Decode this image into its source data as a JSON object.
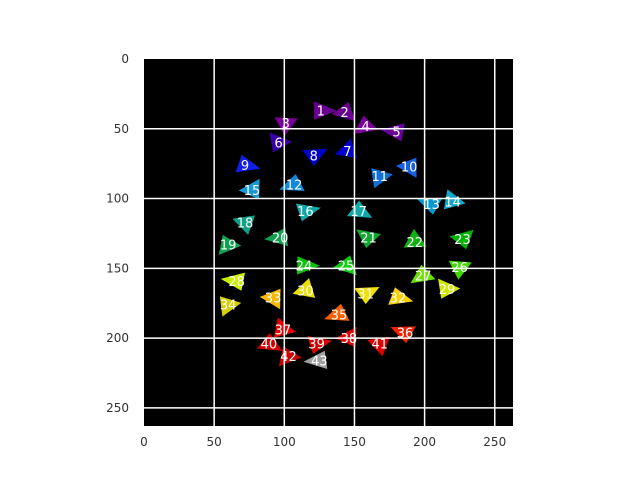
{
  "colors": {
    "background": "#000000",
    "grid": "#ffffff",
    "tick_text": "#333333",
    "label_text": "#ffffff"
  },
  "chart_data": {
    "type": "heatmap",
    "xlim": [
      0,
      263
    ],
    "ylim": [
      0,
      263
    ],
    "y_inverted": true,
    "grid": true,
    "x_ticks": [
      0,
      50,
      100,
      150,
      200,
      250
    ],
    "y_ticks": [
      0,
      50,
      100,
      150,
      200,
      250
    ],
    "segments": [
      {
        "label": "1",
        "x": 126,
        "y": 37,
        "color": "#6b0090"
      },
      {
        "label": "2",
        "x": 143,
        "y": 38,
        "color": "#6b0090"
      },
      {
        "label": "3",
        "x": 101,
        "y": 46,
        "color": "#7a009a"
      },
      {
        "label": "4",
        "x": 158,
        "y": 48,
        "color": "#7a009a"
      },
      {
        "label": "5",
        "x": 180,
        "y": 52,
        "color": "#6a009a"
      },
      {
        "label": "6",
        "x": 96,
        "y": 60,
        "color": "#3a00a8"
      },
      {
        "label": "7",
        "x": 145,
        "y": 66,
        "color": "#0000c8"
      },
      {
        "label": "8",
        "x": 121,
        "y": 69,
        "color": "#0000c8"
      },
      {
        "label": "9",
        "x": 72,
        "y": 76,
        "color": "#1020e8"
      },
      {
        "label": "10",
        "x": 189,
        "y": 77,
        "color": "#1860e0"
      },
      {
        "label": "11",
        "x": 168,
        "y": 84,
        "color": "#1070d8"
      },
      {
        "label": "12",
        "x": 107,
        "y": 90,
        "color": "#1088e0"
      },
      {
        "label": "13",
        "x": 205,
        "y": 104,
        "color": "#0898d0"
      },
      {
        "label": "14",
        "x": 220,
        "y": 102,
        "color": "#10a8c8"
      },
      {
        "label": "15",
        "x": 77,
        "y": 94,
        "color": "#1898d8"
      },
      {
        "label": "16",
        "x": 115,
        "y": 109,
        "color": "#10a8a8"
      },
      {
        "label": "17",
        "x": 153,
        "y": 109,
        "color": "#10a8a8"
      },
      {
        "label": "18",
        "x": 72,
        "y": 117,
        "color": "#10a088"
      },
      {
        "label": "19",
        "x": 60,
        "y": 133,
        "color": "#10a050"
      },
      {
        "label": "20",
        "x": 97,
        "y": 128,
        "color": "#10a050"
      },
      {
        "label": "21",
        "x": 160,
        "y": 128,
        "color": "#10a830"
      },
      {
        "label": "22",
        "x": 193,
        "y": 131,
        "color": "#10b010"
      },
      {
        "label": "23",
        "x": 227,
        "y": 129,
        "color": "#00b400"
      },
      {
        "label": "24",
        "x": 114,
        "y": 148,
        "color": "#10c010"
      },
      {
        "label": "25",
        "x": 144,
        "y": 148,
        "color": "#10cc10"
      },
      {
        "label": "26",
        "x": 225,
        "y": 149,
        "color": "#40d800"
      },
      {
        "label": "27",
        "x": 199,
        "y": 155,
        "color": "#68e000"
      },
      {
        "label": "28",
        "x": 66,
        "y": 159,
        "color": "#c8f000"
      },
      {
        "label": "29",
        "x": 216,
        "y": 165,
        "color": "#d0e800"
      },
      {
        "label": "30",
        "x": 115,
        "y": 166,
        "color": "#e8e000"
      },
      {
        "label": "31",
        "x": 158,
        "y": 168,
        "color": "#f0e000"
      },
      {
        "label": "32",
        "x": 181,
        "y": 171,
        "color": "#f8d000"
      },
      {
        "label": "33",
        "x": 92,
        "y": 171,
        "color": "#f8b800"
      },
      {
        "label": "34",
        "x": 60,
        "y": 176,
        "color": "#d8d000"
      },
      {
        "label": "35",
        "x": 139,
        "y": 183,
        "color": "#f86000"
      },
      {
        "label": "36",
        "x": 186,
        "y": 196,
        "color": "#f02000"
      },
      {
        "label": "37",
        "x": 99,
        "y": 194,
        "color": "#e80000"
      },
      {
        "label": "38",
        "x": 146,
        "y": 200,
        "color": "#e00000"
      },
      {
        "label": "39",
        "x": 123,
        "y": 204,
        "color": "#d80000"
      },
      {
        "label": "40",
        "x": 89,
        "y": 204,
        "color": "#d00000"
      },
      {
        "label": "41",
        "x": 168,
        "y": 204,
        "color": "#d80000"
      },
      {
        "label": "42",
        "x": 103,
        "y": 213,
        "color": "#c80000"
      },
      {
        "label": "43",
        "x": 125,
        "y": 216,
        "color": "#a0a0a0"
      }
    ]
  }
}
